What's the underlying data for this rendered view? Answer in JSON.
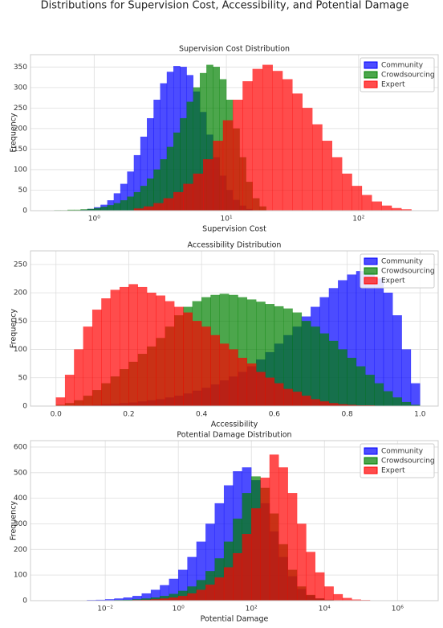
{
  "title": "Distributions for Supervision Cost, Accessibility, and Potential Damage",
  "chart_data": [
    {
      "type": "histogram",
      "title": "Supervision Cost Distribution",
      "xlabel": "Supervision Cost",
      "ylabel": "Frequency",
      "xscale": "log",
      "xlim": [
        0.33,
        400
      ],
      "ylim": [
        0,
        380
      ],
      "xticks": [
        {
          "value": 1,
          "label": "10⁰"
        },
        {
          "value": 10,
          "label": "10¹"
        },
        {
          "value": 100,
          "label": "10²"
        }
      ],
      "yticks": [
        0,
        50,
        100,
        150,
        200,
        250,
        300,
        350
      ],
      "grid": true,
      "legend": "upper right",
      "alpha": 0.7,
      "series": [
        {
          "name": "Community",
          "color": "#0000ff",
          "bins": [
            0.79,
            0.89,
            1.0,
            1.12,
            1.26,
            1.41,
            1.58,
            1.78,
            2.0,
            2.24,
            2.51,
            2.82,
            3.16,
            3.55,
            3.98,
            4.47,
            5.01,
            5.62,
            6.31,
            7.08,
            7.94,
            8.91,
            10.0,
            11.2,
            12.6,
            14.1,
            15.8
          ],
          "values": [
            2,
            4,
            8,
            14,
            25,
            42,
            65,
            95,
            135,
            180,
            225,
            270,
            310,
            338,
            352,
            350,
            330,
            290,
            240,
            185,
            130,
            85,
            50,
            26,
            12,
            4
          ]
        },
        {
          "name": "Crowdsourcing",
          "color": "#008000",
          "bins": [
            0.5,
            0.56,
            0.63,
            0.71,
            0.79,
            0.89,
            1.0,
            1.12,
            1.26,
            1.41,
            1.58,
            1.78,
            2.0,
            2.24,
            2.51,
            2.82,
            3.16,
            3.55,
            3.98,
            4.47,
            5.01,
            5.62,
            6.31,
            7.08,
            7.94,
            8.91,
            10.0,
            11.2,
            12.6,
            14.1,
            15.8,
            17.8,
            20.0
          ],
          "values": [
            1,
            1,
            2,
            2,
            3,
            4,
            6,
            9,
            13,
            18,
            25,
            34,
            45,
            60,
            78,
            100,
            125,
            155,
            190,
            225,
            265,
            300,
            335,
            355,
            350,
            320,
            270,
            200,
            130,
            70,
            30,
            10
          ]
        },
        {
          "name": "Expert",
          "color": "#ff0000",
          "bins": [
            2.0,
            2.37,
            2.82,
            3.35,
            3.98,
            4.73,
            5.62,
            6.68,
            7.94,
            9.44,
            11.2,
            13.3,
            15.8,
            18.8,
            22.4,
            26.6,
            31.6,
            37.6,
            44.7,
            53.1,
            63.1,
            75.0,
            89.1,
            106,
            126,
            150,
            178,
            211,
            251
          ],
          "values": [
            5,
            10,
            18,
            30,
            45,
            65,
            90,
            125,
            170,
            220,
            270,
            315,
            345,
            355,
            340,
            320,
            285,
            250,
            210,
            170,
            130,
            90,
            60,
            38,
            22,
            12,
            6,
            3
          ]
        }
      ]
    },
    {
      "type": "histogram",
      "title": "Accessibility Distribution",
      "xlabel": "Accessibility",
      "ylabel": "Frequency",
      "xscale": "linear",
      "xlim": [
        -0.07,
        1.05
      ],
      "ylim": [
        0,
        274
      ],
      "xticks": [
        {
          "value": 0,
          "label": "0.0"
        },
        0.2,
        0.4,
        0.6,
        0.8,
        {
          "value": 1,
          "label": "1.0"
        }
      ],
      "yticks": [
        0,
        50,
        100,
        150,
        200,
        250
      ],
      "grid": true,
      "legend": "upper right",
      "alpha": 0.7,
      "bins": [
        0,
        0.025,
        0.05,
        0.075,
        0.1,
        0.125,
        0.15,
        0.175,
        0.2,
        0.225,
        0.25,
        0.275,
        0.3,
        0.325,
        0.35,
        0.375,
        0.4,
        0.425,
        0.45,
        0.475,
        0.5,
        0.525,
        0.55,
        0.575,
        0.6,
        0.625,
        0.65,
        0.675,
        0.7,
        0.725,
        0.75,
        0.775,
        0.8,
        0.825,
        0.85,
        0.875,
        0.9,
        0.925,
        0.95,
        0.975,
        1.0
      ],
      "series": [
        {
          "name": "Community",
          "color": "#0000ff",
          "values": [
            0,
            0,
            1,
            1,
            2,
            3,
            4,
            5,
            6,
            8,
            10,
            12,
            15,
            18,
            22,
            27,
            32,
            38,
            45,
            52,
            60,
            70,
            82,
            95,
            110,
            125,
            140,
            158,
            175,
            192,
            208,
            222,
            232,
            238,
            236,
            225,
            200,
            160,
            100,
            40
          ]
        },
        {
          "name": "Crowdsourcing",
          "color": "#008000",
          "values": [
            2,
            5,
            10,
            18,
            28,
            40,
            52,
            65,
            78,
            92,
            105,
            120,
            140,
            160,
            175,
            185,
            192,
            196,
            198,
            196,
            192,
            188,
            184,
            180,
            176,
            172,
            165,
            150,
            140,
            128,
            115,
            100,
            85,
            70,
            55,
            40,
            26,
            15,
            7,
            2
          ]
        },
        {
          "name": "Expert",
          "color": "#ff0000",
          "values": [
            15,
            55,
            100,
            140,
            170,
            190,
            205,
            210,
            215,
            210,
            200,
            195,
            185,
            175,
            165,
            150,
            140,
            125,
            110,
            100,
            85,
            75,
            60,
            50,
            40,
            30,
            25,
            18,
            12,
            8,
            5,
            3,
            2,
            1,
            1,
            0,
            0,
            0,
            0,
            0
          ]
        }
      ]
    },
    {
      "type": "histogram",
      "title": "Potential Damage Distribution",
      "xlabel": "Potential Damage",
      "ylabel": "Frequency",
      "xscale": "log",
      "xlim": [
        9e-05,
        13000000
      ],
      "ylim": [
        0,
        625
      ],
      "xticks": [
        {
          "value": 0.01,
          "label": "10⁻²"
        },
        {
          "value": 1,
          "label": "10⁰"
        },
        {
          "value": 100,
          "label": "10²"
        },
        {
          "value": 10000,
          "label": "10⁴"
        },
        {
          "value": 1000000,
          "label": "10⁶"
        }
      ],
      "yticks": [
        0,
        100,
        200,
        300,
        400,
        500,
        600
      ],
      "grid": true,
      "legend": "upper right",
      "alpha": 0.7,
      "bins": [
        0.000316,
        0.000562,
        0.001,
        0.00178,
        0.00316,
        0.00562,
        0.01,
        0.0178,
        0.0316,
        0.0562,
        0.1,
        0.178,
        0.316,
        0.562,
        1,
        1.78,
        3.16,
        5.62,
        10,
        17.8,
        31.6,
        56.2,
        100,
        178,
        316,
        562,
        1000,
        1780,
        3160,
        5620,
        10000,
        17800,
        31600,
        56200,
        100000,
        178000,
        316000,
        562000,
        1000000,
        1780000,
        3160000
      ],
      "series": [
        {
          "name": "Community",
          "color": "#0000ff",
          "values": [
            0,
            0,
            1,
            1,
            2,
            3,
            5,
            8,
            12,
            18,
            28,
            42,
            60,
            85,
            120,
            170,
            230,
            300,
            380,
            450,
            505,
            520,
            470,
            380,
            270,
            170,
            95,
            45,
            20,
            8,
            3,
            1,
            0,
            0,
            0,
            0,
            0,
            0,
            0,
            0
          ]
        },
        {
          "name": "Crowdsourcing",
          "color": "#008000",
          "values": [
            0,
            0,
            0,
            0,
            0,
            1,
            1,
            2,
            3,
            5,
            8,
            12,
            18,
            26,
            38,
            55,
            80,
            115,
            165,
            230,
            320,
            420,
            485,
            440,
            340,
            220,
            120,
            55,
            22,
            8,
            3,
            1,
            0,
            0,
            0,
            0,
            0,
            0,
            0,
            0
          ]
        },
        {
          "name": "Expert",
          "color": "#ff0000",
          "values": [
            0,
            0,
            0,
            0,
            0,
            0,
            0,
            1,
            1,
            2,
            3,
            5,
            8,
            12,
            18,
            28,
            42,
            62,
            90,
            130,
            185,
            260,
            360,
            480,
            570,
            520,
            420,
            300,
            190,
            110,
            55,
            25,
            10,
            4,
            2,
            1,
            1,
            0,
            0,
            0
          ]
        }
      ]
    }
  ]
}
